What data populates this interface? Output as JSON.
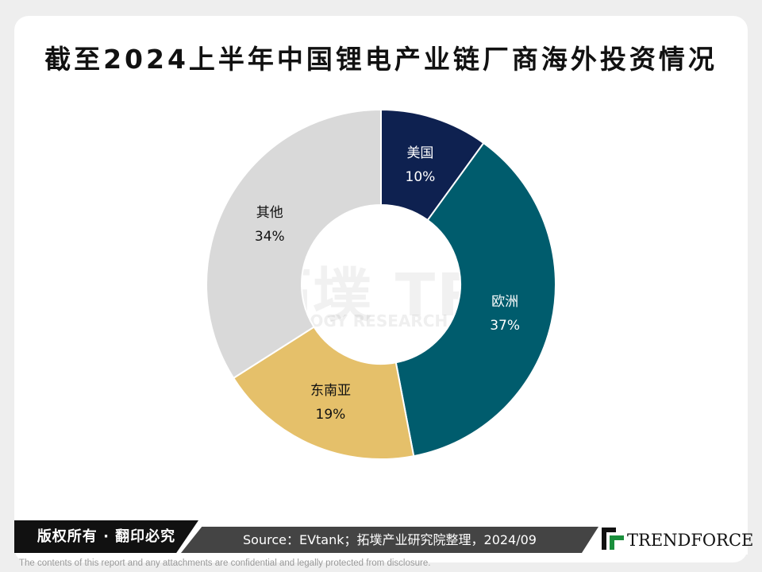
{
  "title": "截至2024上半年中国锂电产业链厂商海外投资情况",
  "chart_data": {
    "type": "pie",
    "donut": true,
    "categories": [
      "美国",
      "欧洲",
      "东南亚",
      "其他"
    ],
    "values": [
      10,
      37,
      19,
      34
    ],
    "labels": [
      "10%",
      "37%",
      "19%",
      "34%"
    ],
    "colors": [
      "#0e2150",
      "#005c6d",
      "#e5c06a",
      "#d9d9d9"
    ],
    "label_colors": [
      "#ffffff",
      "#ffffff",
      "#111111",
      "#111111"
    ]
  },
  "watermark": {
    "cn": "拓墣",
    "logo": "TRi",
    "en": "TOPOLOGY RESEARCH INSTITUTE"
  },
  "footer": {
    "copyright": "版权所有 · 翻印必究",
    "source": "Source：EVtank；拓墣产业研究院整理，2024/09",
    "brand": "TRENDFORCE",
    "disclaimer": "The contents of this report and any attachments are confidential and legally protected from disclosure."
  }
}
